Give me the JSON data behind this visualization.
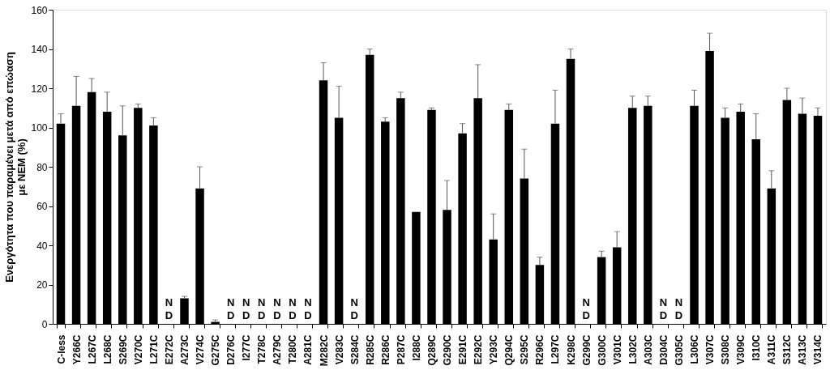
{
  "chart_data": {
    "type": "bar",
    "ylabel": "Ενεργότητα που παραμένει μετά από επώαση\nμε NEM (%)",
    "categories": [
      "C-less",
      "Y266C",
      "L267C",
      "L268C",
      "S269C",
      "V270C",
      "L271C",
      "E272C",
      "A273C",
      "V274C",
      "G275C",
      "D276C",
      "I277C",
      "T278C",
      "A279C",
      "T280C",
      "A281C",
      "M282C",
      "V283C",
      "S284C",
      "R285C",
      "R286C",
      "P287C",
      "I288C",
      "Q289C",
      "G290C",
      "E291C",
      "E292C",
      "Y293C",
      "Q294C",
      "S295C",
      "R296C",
      "L297C",
      "K298C",
      "G299C",
      "G300C",
      "V301C",
      "L302C",
      "A303C",
      "D304C",
      "G305C",
      "L306C",
      "V307C",
      "S308C",
      "V309C",
      "I310C",
      "A311C",
      "S312C",
      "A313C",
      "V314C"
    ],
    "values": [
      102,
      111,
      118,
      108,
      96,
      110,
      101,
      null,
      13,
      69,
      1,
      null,
      null,
      null,
      null,
      null,
      null,
      124,
      105,
      null,
      137,
      103,
      115,
      57,
      109,
      58,
      97,
      115,
      43,
      109,
      74,
      30,
      102,
      135,
      null,
      34,
      39,
      110,
      111,
      null,
      null,
      111,
      139,
      105,
      108,
      94,
      69,
      114,
      107,
      106
    ],
    "errors": [
      [
        102,
        107
      ],
      [
        111,
        126
      ],
      [
        118,
        125
      ],
      [
        108,
        118
      ],
      [
        96,
        111
      ],
      [
        110,
        112
      ],
      [
        101,
        105
      ],
      null,
      [
        13,
        14
      ],
      [
        69,
        80
      ],
      [
        1,
        2
      ],
      null,
      null,
      null,
      null,
      null,
      null,
      [
        124,
        133
      ],
      [
        105,
        121
      ],
      null,
      [
        137,
        140
      ],
      [
        103,
        105
      ],
      [
        115,
        118
      ],
      null,
      [
        109,
        110
      ],
      [
        58,
        73
      ],
      [
        97,
        102
      ],
      [
        115,
        132
      ],
      [
        43,
        56
      ],
      [
        109,
        112
      ],
      [
        74,
        89
      ],
      [
        30,
        34
      ],
      [
        102,
        119
      ],
      [
        135,
        140
      ],
      null,
      [
        34,
        37
      ],
      [
        39,
        47
      ],
      [
        110,
        116
      ],
      [
        111,
        116
      ],
      null,
      null,
      [
        111,
        119
      ],
      [
        139,
        148
      ],
      [
        105,
        110
      ],
      [
        108,
        112
      ],
      [
        94,
        107
      ],
      [
        69,
        78
      ],
      [
        114,
        120
      ],
      [
        107,
        115
      ],
      [
        106,
        110
      ]
    ],
    "value_labels": [
      null,
      null,
      null,
      null,
      null,
      null,
      null,
      "ND",
      null,
      null,
      null,
      "ND",
      "ND",
      "ND",
      "ND",
      "ND",
      "ND",
      null,
      null,
      "ND",
      null,
      null,
      null,
      null,
      null,
      null,
      null,
      null,
      null,
      null,
      null,
      null,
      null,
      null,
      "ND",
      null,
      null,
      null,
      null,
      "ND",
      "ND",
      null,
      null,
      null,
      null,
      null,
      null,
      null,
      null,
      null
    ],
    "color": "#000000",
    "ylim": [
      0,
      160
    ],
    "yticks": [
      0,
      20,
      40,
      60,
      80,
      100,
      120,
      140,
      160
    ],
    "grid": false
  }
}
